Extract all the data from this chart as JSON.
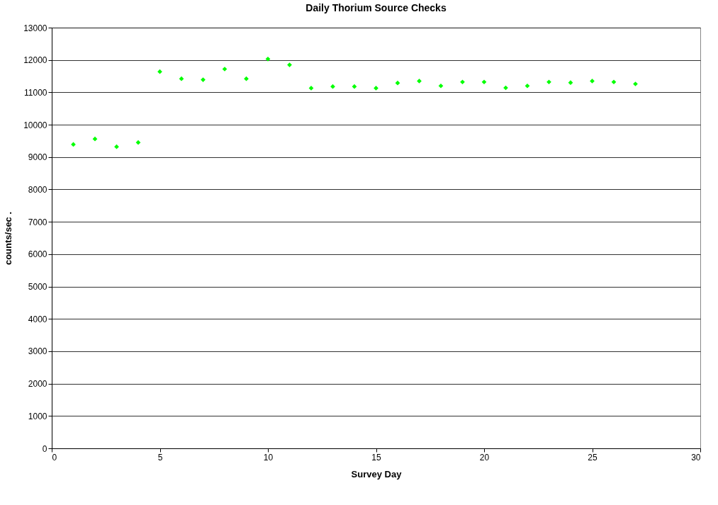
{
  "chart_data": {
    "type": "scatter",
    "title": "Daily Thorium Source Checks",
    "xlabel": "Survey Day",
    "ylabel": "counts/sec    .",
    "x": [
      1,
      2,
      3,
      4,
      5,
      6,
      7,
      8,
      9,
      10,
      11,
      12,
      13,
      14,
      15,
      16,
      17,
      18,
      19,
      20,
      21,
      22,
      23,
      24,
      25,
      26,
      27
    ],
    "series": [
      {
        "color": "#00ff00",
        "values": [
          9390,
          9560,
          9320,
          9450,
          11640,
          11420,
          11390,
          11720,
          11420,
          12030,
          11850,
          11130,
          11180,
          11180,
          11130,
          11290,
          11350,
          11200,
          11320,
          11320,
          11140,
          11200,
          11320,
          11300,
          11350,
          11320,
          11260
        ]
      }
    ],
    "xlim": [
      0,
      30
    ],
    "xticks": [
      0,
      5,
      10,
      15,
      20,
      25,
      30
    ],
    "ylim": [
      0,
      13000
    ],
    "yticks": [
      0,
      1000,
      2000,
      3000,
      4000,
      5000,
      6000,
      7000,
      8000,
      9000,
      10000,
      11000,
      12000,
      13000
    ],
    "grid": "y",
    "marker": "diamond"
  }
}
